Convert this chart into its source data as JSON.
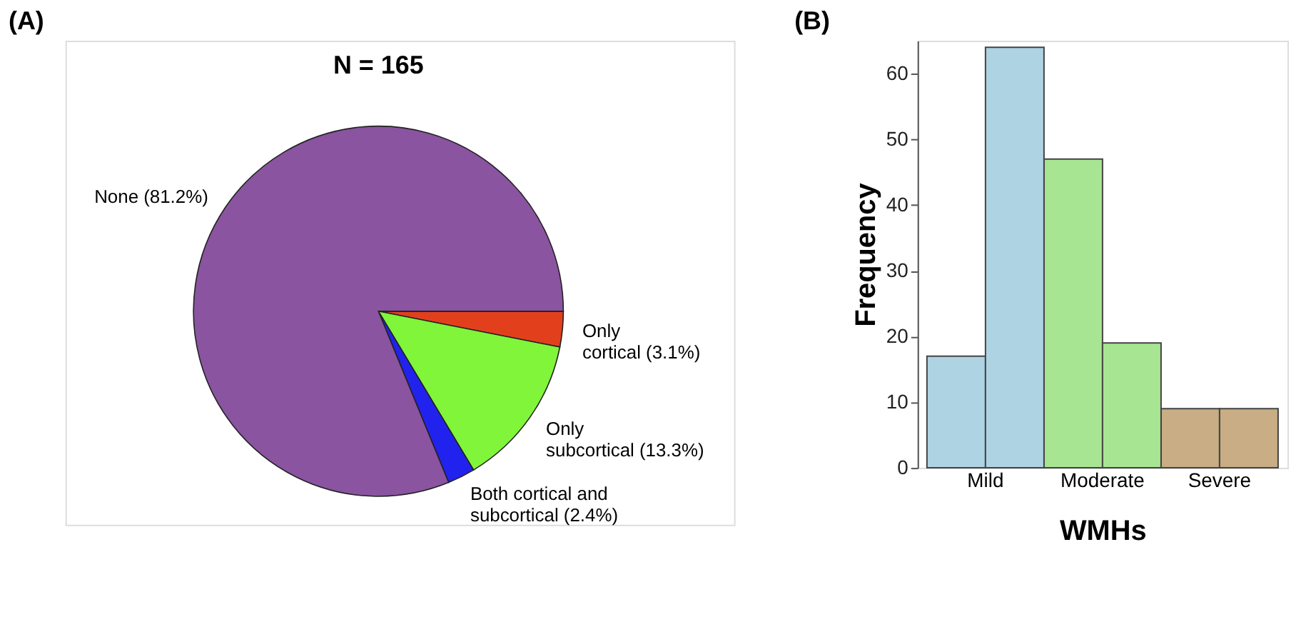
{
  "chart_data": [
    {
      "type": "pie",
      "title": "N = 165",
      "annotations": [
        "(A)"
      ],
      "categories": [
        "Only\ncortical (3.1%)",
        "Only\nsubcortical (13.3%)",
        "Both cortical and\nsubcortical (2.4%)",
        "None (81.2%)"
      ],
      "values": [
        3.1,
        13.3,
        2.4,
        81.2
      ],
      "colors": [
        "#e2401c",
        "#80f53a",
        "#2222ee",
        "#8a54a0"
      ]
    },
    {
      "type": "bar",
      "annotations": [
        "(B)"
      ],
      "xlabel": "WMHs",
      "ylabel": "Frequency",
      "categories": [
        "Mild",
        "Moderate",
        "Severe"
      ],
      "series": [
        {
          "values": [
            17,
            47,
            9
          ],
          "colors": [
            "#aed3e3",
            "#a8e592",
            "#c8ad85"
          ]
        },
        {
          "values": [
            64,
            19,
            9
          ],
          "colors": [
            "#aed3e3",
            "#a8e592",
            "#c8ad85"
          ]
        }
      ],
      "ylim": [
        0,
        65
      ],
      "yticks": [
        0,
        10,
        20,
        30,
        40,
        50,
        60
      ],
      "grid": false
    }
  ]
}
